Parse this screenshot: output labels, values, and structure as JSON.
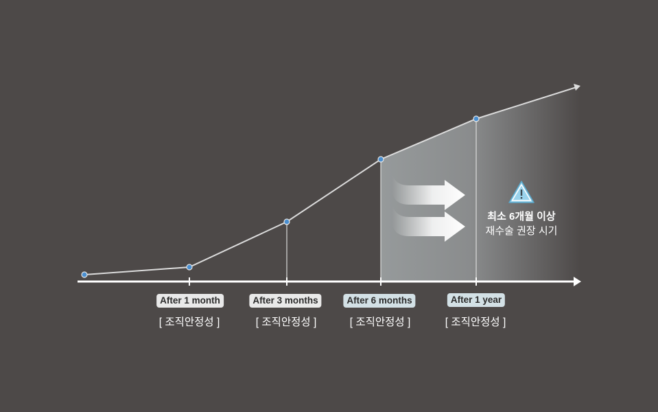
{
  "milestones": [
    {
      "label": "After 1 month",
      "sub": "[ 조직안정성 ]",
      "style": "light"
    },
    {
      "label": "After 3 months",
      "sub": "[ 조직안정성 ]",
      "style": "light"
    },
    {
      "label": "After 6 months",
      "sub": "[ 조직안정성 ]",
      "style": "blue"
    },
    {
      "label": "After 1 year",
      "sub": "[ 조직안정성 ]",
      "style": "blue"
    }
  ],
  "note": {
    "line1": "최소 6개월 이상",
    "line2": "재수술 권장 시기",
    "icon": "warning-triangle-icon"
  },
  "colors": {
    "background": "#4d4948",
    "line": "#dcdcdc",
    "point": "#4a8fd0",
    "highlight_start": "#969a9b"
  }
}
